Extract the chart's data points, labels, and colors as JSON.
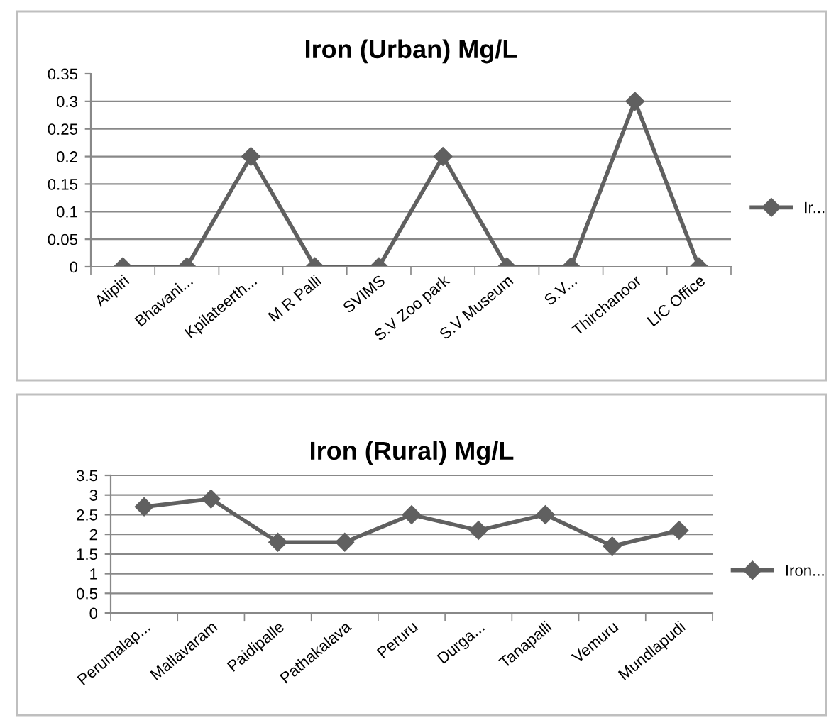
{
  "chart_data": [
    {
      "type": "line",
      "title": "Iron (Urban) Mg/L",
      "categories": [
        "Alipiri",
        "Bhavani...",
        "Kpilateerth...",
        "M R Palli",
        "SVIMS",
        "S.V Zoo park",
        "S.V Museum",
        "S.V...",
        "Thirchanoor",
        "LIC Office"
      ],
      "series": [
        {
          "name": "Ir...",
          "color": "#606060",
          "values": [
            0,
            0,
            0.2,
            0,
            0,
            0.2,
            0,
            0,
            0.3,
            0
          ]
        }
      ],
      "ylim": [
        0,
        0.35
      ],
      "yticks": [
        0,
        0.05,
        0.1,
        0.15,
        0.2,
        0.25,
        0.3,
        0.35
      ],
      "grid": "y",
      "legend": "right",
      "marker": "diamond",
      "line_style": "solid"
    },
    {
      "type": "line",
      "title": "Iron (Rural) Mg/L",
      "categories": [
        "Perumalap...",
        "Mallavaram",
        "Paidipalle",
        "Pathakalava",
        "Peruru",
        "Durga...",
        "Tanapalli",
        "Vemuru",
        "Mundlapudi"
      ],
      "series": [
        {
          "name": "Iron...",
          "color": "#606060",
          "values": [
            2.7,
            2.9,
            1.8,
            1.8,
            2.5,
            2.1,
            2.5,
            1.7,
            2.1
          ]
        }
      ],
      "ylim": [
        0,
        3.5
      ],
      "yticks": [
        0,
        0.5,
        1,
        1.5,
        2,
        2.5,
        3,
        3.5
      ],
      "grid": "y",
      "legend": "right",
      "marker": "diamond",
      "line_style": "solid"
    }
  ]
}
